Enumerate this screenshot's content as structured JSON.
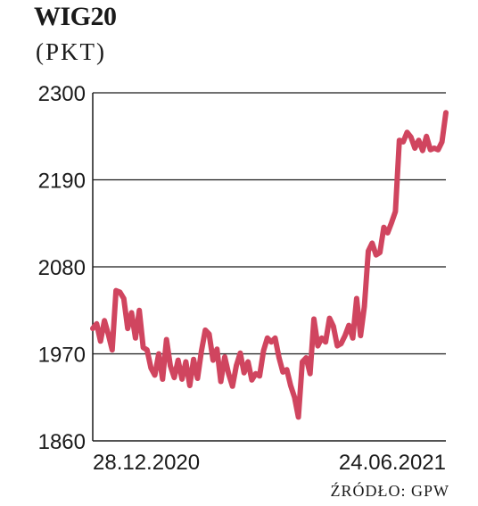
{
  "chart_data": {
    "type": "line",
    "title": "WIG20",
    "unit_label": "(PKT)",
    "source": "ŹRÓDŁO: GPW",
    "yticks": [
      2300,
      2190,
      2080,
      1970,
      1860
    ],
    "ylim": [
      1860,
      2300
    ],
    "x_labels": [
      "28.12.2020",
      "24.06.2021"
    ],
    "line_color": "#d0455f",
    "grid": true,
    "series": [
      {
        "values": [
          2002,
          2008,
          1986,
          2012,
          1995,
          1975,
          2050,
          2048,
          2040,
          2002,
          2022,
          1990,
          2025,
          1978,
          1975,
          1952,
          1943,
          1970,
          1938,
          1988,
          1955,
          1940,
          1962,
          1938,
          1960,
          1930,
          1963,
          1939,
          1973,
          2000,
          1995,
          1962,
          1976,
          1935,
          1966,
          1945,
          1929,
          1955,
          1971,
          1946,
          1960,
          1937,
          1945,
          1942,
          1974,
          1990,
          1985,
          1990,
          1965,
          1947,
          1950,
          1930,
          1915,
          1890,
          1960,
          1965,
          1945,
          2014,
          1980,
          1990,
          1985,
          2015,
          2005,
          1980,
          1983,
          1993,
          2006,
          1990,
          2040,
          1993,
          2030,
          2100,
          2110,
          2095,
          2098,
          2130,
          2123,
          2136,
          2150,
          2240,
          2238,
          2250,
          2244,
          2230,
          2240,
          2227,
          2245,
          2228,
          2230,
          2228,
          2238,
          2275
        ]
      }
    ]
  }
}
